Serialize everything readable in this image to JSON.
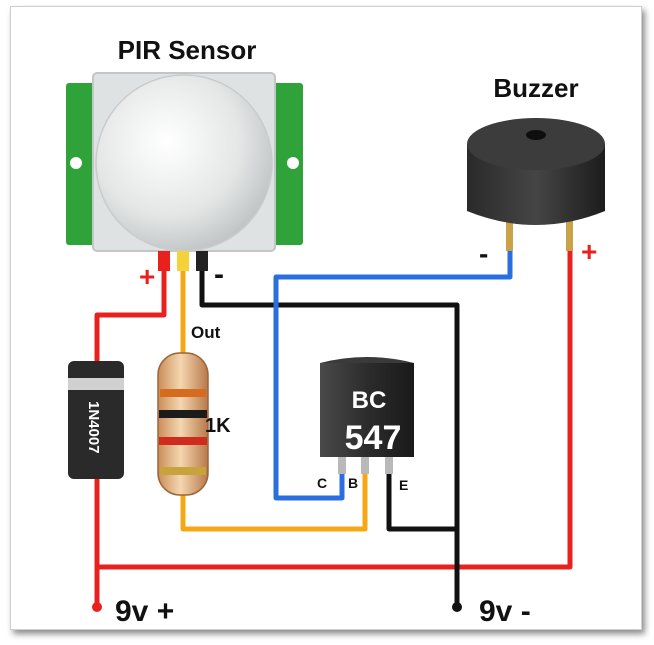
{
  "diagram": {
    "pir_label": "PIR Sensor",
    "buzzer_label": "Buzzer",
    "pir_plus": "+",
    "pir_minus": "-",
    "out_label": "Out",
    "resistor_label": "1K",
    "diode_label": "1N4007",
    "transistor_line1": "BC",
    "transistor_line2": "547",
    "pin_c": "C",
    "pin_b": "B",
    "pin_e": "E",
    "buzzer_minus": "-",
    "buzzer_plus": "+",
    "supply_plus": "9v +",
    "supply_minus": "9v -"
  },
  "colors": {
    "positive_wire": "#e8201e",
    "negative_wire": "#111111",
    "blue_wire": "#2a6fe0",
    "orange_wire": "#f4a816",
    "pcb_green": "#2fa33a",
    "plus_sign": "#e8201e"
  }
}
